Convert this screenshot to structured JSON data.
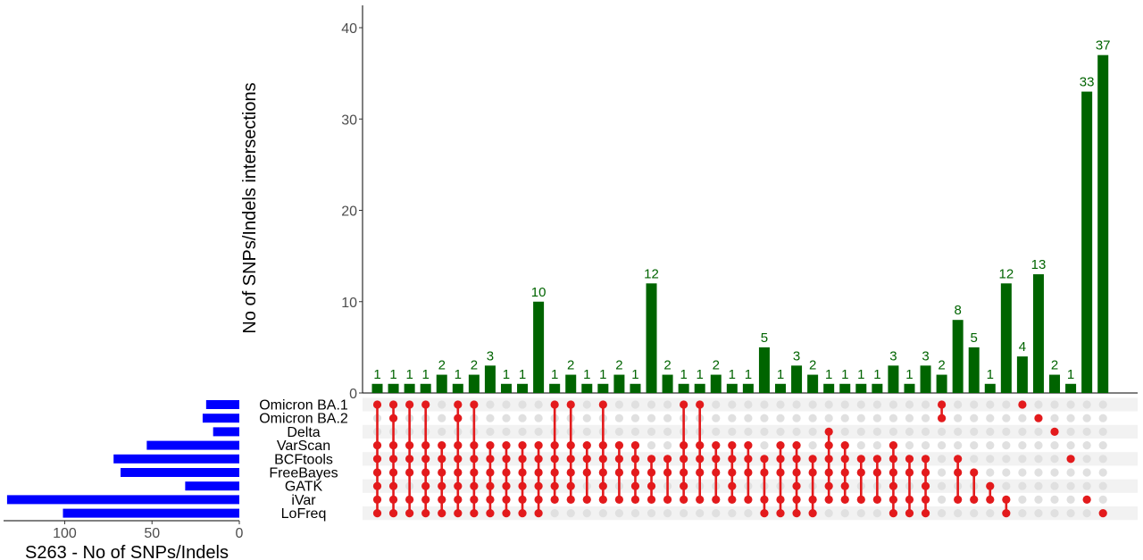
{
  "chart_data": {
    "type": "bar",
    "subtype": "upset",
    "ylabel": "No of SNPs/Indels intersections",
    "ylim": [
      0,
      43
    ],
    "yticks": [
      0,
      10,
      20,
      30,
      40
    ],
    "sets": [
      "Omicron BA.1",
      "Omicron BA.2",
      "Delta",
      "VarScan",
      "BCFtools",
      "FreeBayes",
      "GATK",
      "iVar",
      "LoFreq"
    ],
    "set_sizes": [
      19,
      21,
      15,
      53,
      72,
      68,
      31,
      133,
      101
    ],
    "set_size_xlabel": "S263 - No of SNPs/Indels",
    "set_size_ticks": [
      100,
      50,
      0
    ],
    "set_size_xlim": [
      0,
      135
    ],
    "intersection_values": [
      1,
      1,
      1,
      1,
      2,
      1,
      2,
      3,
      1,
      1,
      10,
      1,
      2,
      1,
      1,
      2,
      1,
      12,
      2,
      1,
      1,
      2,
      1,
      1,
      5,
      1,
      3,
      2,
      1,
      1,
      1,
      1,
      3,
      1,
      3,
      2,
      8,
      5,
      1,
      12,
      4,
      13,
      2,
      1,
      33,
      37
    ],
    "intersection_sets": [
      [
        0,
        3,
        4,
        5,
        6,
        7,
        8
      ],
      [
        0,
        1,
        3,
        4,
        5,
        6,
        7,
        8
      ],
      [
        0,
        3,
        4,
        5,
        7,
        8
      ],
      [
        0,
        3,
        4,
        5,
        6,
        7,
        8
      ],
      [
        3,
        4,
        5,
        6,
        7,
        8
      ],
      [
        0,
        1,
        3,
        4,
        5,
        6,
        7,
        8
      ],
      [
        0,
        3,
        4,
        5,
        6,
        7,
        8
      ],
      [
        3,
        4,
        5,
        6,
        7,
        8
      ],
      [
        3,
        4,
        5,
        6,
        7,
        8
      ],
      [
        3,
        4,
        5,
        6,
        7,
        8
      ],
      [
        3,
        4,
        5,
        6,
        7,
        8
      ],
      [
        0,
        3,
        4,
        5,
        6,
        7
      ],
      [
        0,
        3,
        4,
        5,
        6,
        7
      ],
      [
        3,
        4,
        5,
        7
      ],
      [
        0,
        3,
        4,
        5,
        6,
        7
      ],
      [
        3,
        4,
        5,
        7
      ],
      [
        3,
        4,
        5,
        6,
        7
      ],
      [
        4,
        5,
        6,
        7
      ],
      [
        4,
        5,
        7
      ],
      [
        0,
        3,
        4,
        5,
        6,
        7
      ],
      [
        0,
        3,
        4,
        5,
        7
      ],
      [
        3,
        4,
        5,
        7
      ],
      [
        3,
        4,
        5,
        6,
        7
      ],
      [
        3,
        4,
        5,
        7
      ],
      [
        4,
        5,
        7,
        8
      ],
      [
        3,
        4,
        5,
        7,
        8
      ],
      [
        3,
        4,
        5,
        6,
        7,
        8
      ],
      [
        4,
        5,
        7,
        8
      ],
      [
        2,
        3,
        4,
        5,
        6,
        7
      ],
      [
        3,
        4,
        5,
        6,
        7
      ],
      [
        4,
        5,
        7
      ],
      [
        4,
        5,
        7
      ],
      [
        3,
        4,
        5,
        6,
        7,
        8
      ],
      [
        4,
        5,
        7,
        8
      ],
      [
        4,
        5,
        6,
        7,
        8
      ],
      [
        0,
        1
      ],
      [
        4,
        5,
        7
      ],
      [
        5,
        7
      ],
      [
        6,
        7
      ],
      [
        7,
        8
      ],
      [
        0
      ],
      [
        1
      ],
      [
        2
      ],
      [
        4
      ],
      [
        7
      ],
      [
        8
      ]
    ],
    "colors": {
      "bars": "#006400",
      "set_bars": "#0000ff",
      "dots_active": "#e31a1c",
      "dots_inactive": "#e0e0e0",
      "stripe": "#f2f2f2"
    }
  }
}
